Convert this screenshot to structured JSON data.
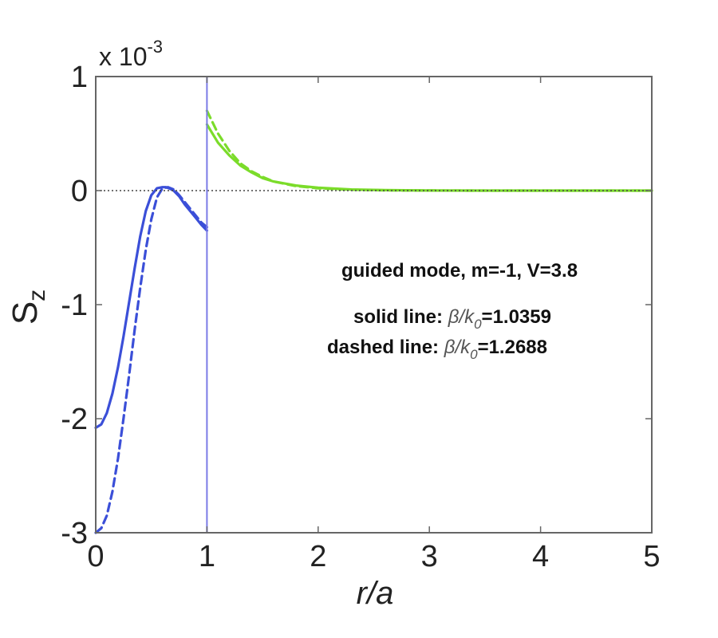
{
  "chart_data": {
    "type": "line",
    "xlabel": "r/a",
    "ylabel": "S",
    "ylabel_subscript": "z",
    "scale_prefix": "x 10",
    "scale_exponent": "-3",
    "xlim": [
      0,
      5
    ],
    "ylim": [
      -3,
      1
    ],
    "x_ticks": [
      "0",
      "1",
      "2",
      "3",
      "4",
      "5"
    ],
    "y_ticks": [
      "1",
      "0",
      "-1",
      "-2",
      "-3"
    ],
    "grid": false,
    "reference_lines": [
      {
        "kind": "horizontal",
        "value": 0,
        "style": "dotted",
        "color": "#444444"
      },
      {
        "kind": "vertical",
        "value": 1,
        "style": "solid",
        "color": "#7a7ae6"
      }
    ],
    "annotations": {
      "mode": "guided mode, m=-1, V=3.8",
      "solid_prefix": "solid line: ",
      "dashed_prefix": "dashed line: ",
      "beta": "β/k",
      "beta_sub": "0",
      "solid_value": "=1.0359",
      "dashed_value": "=1.2688"
    },
    "series": [
      {
        "style": "solid",
        "color": "#3b4fd8",
        "x": [
          0,
          0.05,
          0.1,
          0.15,
          0.2,
          0.25,
          0.3,
          0.35,
          0.4,
          0.45,
          0.5,
          0.55,
          0.6,
          0.63,
          0.66,
          0.7,
          0.75,
          0.8,
          0.85,
          0.9,
          0.95,
          1.0
        ],
        "y": [
          -2.08,
          -2.05,
          -1.95,
          -1.78,
          -1.55,
          -1.28,
          -0.98,
          -0.68,
          -0.4,
          -0.18,
          -0.04,
          0.02,
          0.03,
          0.03,
          0.02,
          0.0,
          -0.05,
          -0.12,
          -0.18,
          -0.24,
          -0.3,
          -0.35
        ]
      },
      {
        "style": "dashed",
        "color": "#3b4fd8",
        "x": [
          0,
          0.05,
          0.1,
          0.15,
          0.2,
          0.25,
          0.3,
          0.35,
          0.4,
          0.45,
          0.5,
          0.55,
          0.6,
          0.65,
          0.7,
          0.75,
          0.8,
          0.85,
          0.9,
          0.95,
          1.0
        ],
        "y": [
          -3.0,
          -2.96,
          -2.85,
          -2.64,
          -2.35,
          -2.0,
          -1.62,
          -1.22,
          -0.85,
          -0.52,
          -0.25,
          -0.06,
          0.02,
          0.03,
          0.01,
          -0.04,
          -0.1,
          -0.16,
          -0.22,
          -0.28,
          -0.32
        ]
      },
      {
        "style": "solid",
        "color": "#7bdc2a",
        "x": [
          1.0,
          1.1,
          1.2,
          1.3,
          1.4,
          1.5,
          1.6,
          1.8,
          2.0,
          2.3,
          2.6,
          3.0,
          3.5,
          4.0,
          4.5,
          5.0
        ],
        "y": [
          0.58,
          0.42,
          0.31,
          0.22,
          0.16,
          0.11,
          0.08,
          0.045,
          0.025,
          0.01,
          0.004,
          0.001,
          0.0,
          0.0,
          0.0,
          0.0
        ]
      },
      {
        "style": "dashed",
        "color": "#7bdc2a",
        "x": [
          1.0,
          1.1,
          1.2,
          1.3,
          1.4,
          1.5,
          1.6,
          1.8,
          2.0,
          2.3,
          2.6,
          3.0,
          3.5,
          4.0,
          4.5,
          5.0
        ],
        "y": [
          0.7,
          0.5,
          0.35,
          0.24,
          0.17,
          0.12,
          0.08,
          0.04,
          0.02,
          0.008,
          0.003,
          0.001,
          0.0,
          0.0,
          0.0,
          0.0
        ]
      }
    ]
  }
}
